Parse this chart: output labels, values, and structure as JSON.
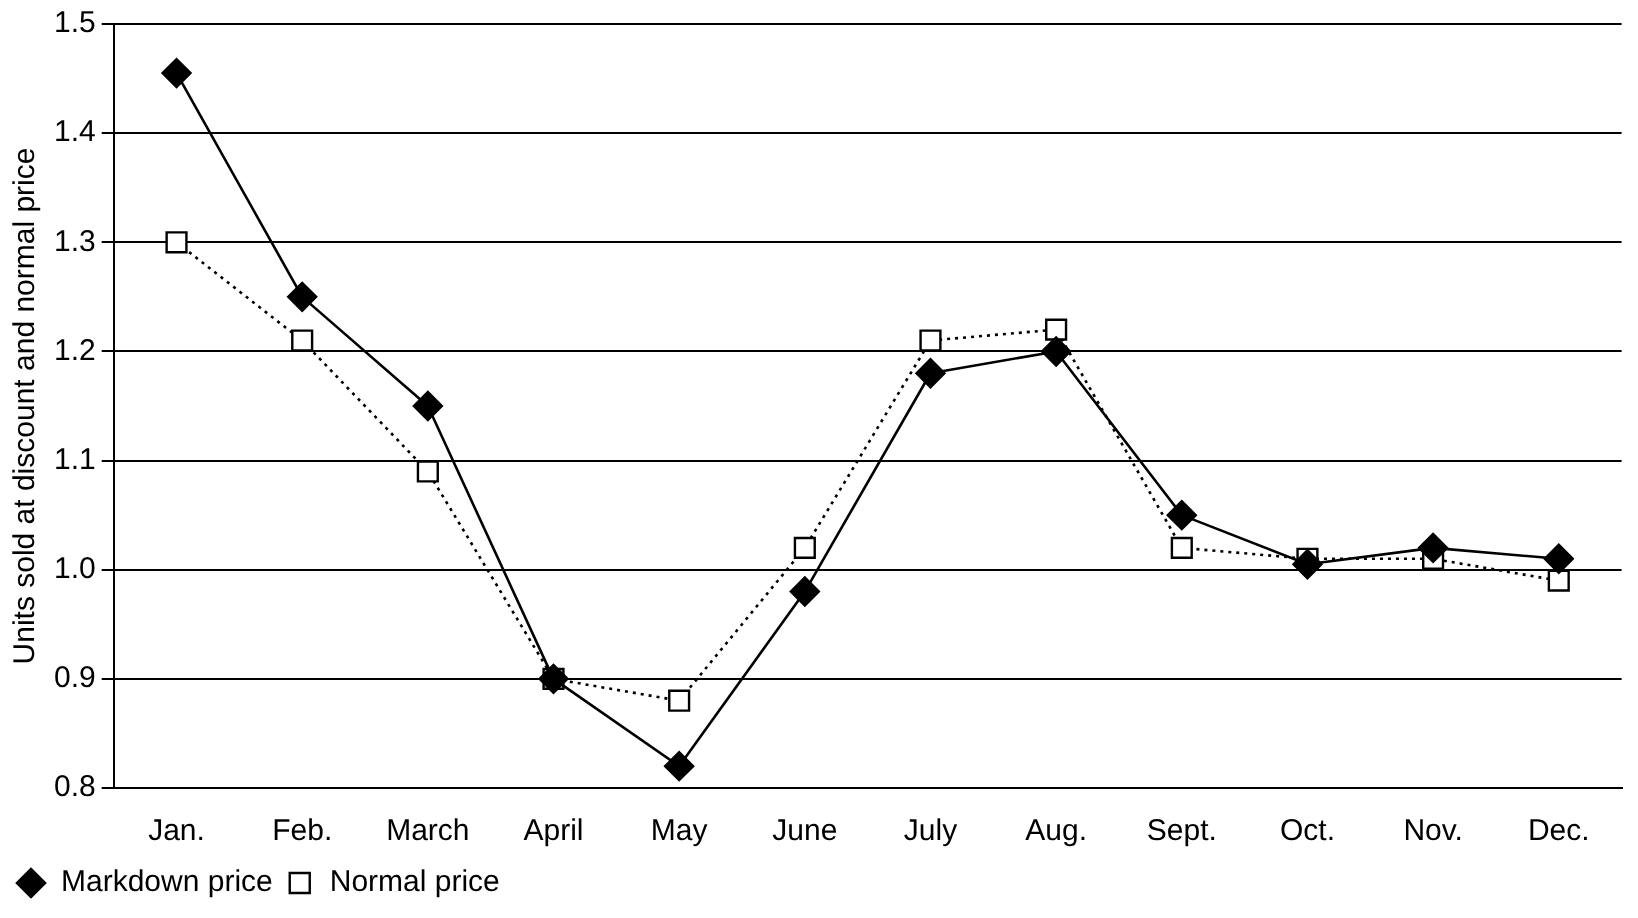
{
  "chart_data": {
    "type": "line",
    "ylabel": "Units sold at discount and normal price",
    "categories": [
      "Jan.",
      "Feb.",
      "March",
      "April",
      "May",
      "June",
      "July",
      "Aug.",
      "Sept.",
      "Oct.",
      "Nov.",
      "Dec."
    ],
    "series": [
      {
        "name": "Markdown price",
        "color": "#000000",
        "marker": "diamond",
        "line_style": "solid",
        "values": [
          1.455,
          1.25,
          1.15,
          0.9,
          0.82,
          0.98,
          1.18,
          1.2,
          1.05,
          1.005,
          1.02,
          1.01
        ]
      },
      {
        "name": "Normal price",
        "color": "#000000",
        "marker": "square",
        "line_style": "dotted",
        "values": [
          1.3,
          1.21,
          1.09,
          0.9,
          0.88,
          1.02,
          1.21,
          1.22,
          1.02,
          1.01,
          1.01,
          0.99
        ]
      }
    ],
    "ylim": [
      0.8,
      1.5
    ],
    "yticks": [
      {
        "value": 0.8,
        "label": "0.8"
      },
      {
        "value": 0.9,
        "label": "0.9"
      },
      {
        "value": 1.0,
        "label": "1.0"
      },
      {
        "value": 1.1,
        "label": "1.1"
      },
      {
        "value": 1.2,
        "label": "1.2"
      },
      {
        "value": 1.3,
        "label": "1.3"
      },
      {
        "value": 1.4,
        "label": "1.4"
      },
      {
        "value": 1.5,
        "label": "1.5"
      }
    ],
    "grid": "y",
    "legend": "bottom left"
  }
}
